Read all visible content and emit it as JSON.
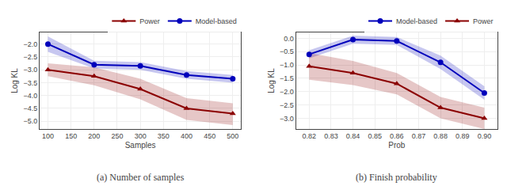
{
  "chart_data": [
    {
      "type": "line",
      "x": [
        100,
        200,
        300,
        400,
        500
      ],
      "series": [
        {
          "name": "Model-based",
          "color": "#0000BB",
          "marker": "circle",
          "values": [
            -2.0,
            -2.8,
            -2.85,
            -3.2,
            -3.35
          ],
          "band_lo": [
            -2.3,
            -2.95,
            -3.0,
            -3.35,
            -3.5
          ],
          "band_hi": [
            -1.7,
            -2.65,
            -2.7,
            -3.05,
            -3.2
          ]
        },
        {
          "name": "Power",
          "color": "#8B0000",
          "marker": "triangle-up",
          "values": [
            -3.0,
            -3.25,
            -3.75,
            -4.5,
            -4.7
          ],
          "band_lo": [
            -3.25,
            -3.6,
            -4.15,
            -4.95,
            -5.15
          ],
          "band_hi": [
            -2.75,
            -2.9,
            -3.35,
            -4.1,
            -4.3
          ]
        }
      ],
      "xlabel": "Samples",
      "ylabel": "Log KL",
      "xlim": [
        82,
        518
      ],
      "ylim": [
        -5.3,
        -1.55
      ],
      "xticks": [
        100,
        150,
        200,
        250,
        300,
        350,
        400,
        450,
        500
      ],
      "yticks": [
        {
          "value": -5.0,
          "label": "−5.0"
        },
        {
          "value": -4.5,
          "label": "−4.5"
        },
        {
          "value": -4.0,
          "label": "−4.0"
        },
        {
          "value": -3.5,
          "label": "−3.5"
        },
        {
          "value": -3.0,
          "label": "−3.0"
        },
        {
          "value": -2.5,
          "label": "−2.5"
        },
        {
          "value": -2.0,
          "label": "−2.0"
        }
      ],
      "caption": "(a) Number of samples",
      "grid": true,
      "legend": "upper right"
    },
    {
      "type": "line",
      "x": [
        0.82,
        0.84,
        0.86,
        0.88,
        0.9
      ],
      "series": [
        {
          "name": "Model-based",
          "color": "#0000BB",
          "marker": "circle",
          "values": [
            -0.6,
            -0.05,
            -0.1,
            -0.9,
            -2.05
          ],
          "band_lo": [
            -0.75,
            -0.2,
            -0.25,
            -1.15,
            -2.3
          ],
          "band_hi": [
            -0.45,
            0.1,
            0.05,
            -0.65,
            -1.8
          ]
        },
        {
          "name": "Power",
          "color": "#8B0000",
          "marker": "triangle-up",
          "values": [
            -1.05,
            -1.3,
            -1.7,
            -2.6,
            -3.0
          ],
          "band_lo": [
            -1.55,
            -1.75,
            -2.1,
            -3.0,
            -3.4
          ],
          "band_hi": [
            -0.55,
            -0.85,
            -1.3,
            -2.2,
            -2.6
          ]
        }
      ],
      "xlabel": "Prob",
      "ylabel": "Log KL",
      "xlim": [
        0.814,
        0.906
      ],
      "ylim": [
        -3.4,
        0.22
      ],
      "xticks": [
        0.82,
        0.83,
        0.84,
        0.85,
        0.86,
        0.87,
        0.88,
        0.89,
        {
          "value": 0.9,
          "label": "0.90"
        }
      ],
      "yticks": [
        {
          "value": -3.0,
          "label": "−3.0"
        },
        {
          "value": -2.5,
          "label": "−2.5"
        },
        {
          "value": -2.0,
          "label": "−2.0"
        },
        {
          "value": -1.5,
          "label": "−1.5"
        },
        {
          "value": -1.0,
          "label": "−1.0"
        },
        {
          "value": -0.5,
          "label": "−0.5"
        },
        {
          "value": 0.0,
          "label": "0.0"
        }
      ],
      "caption": "(b) Finish probability",
      "grid": true,
      "legend": "upper right"
    }
  ]
}
